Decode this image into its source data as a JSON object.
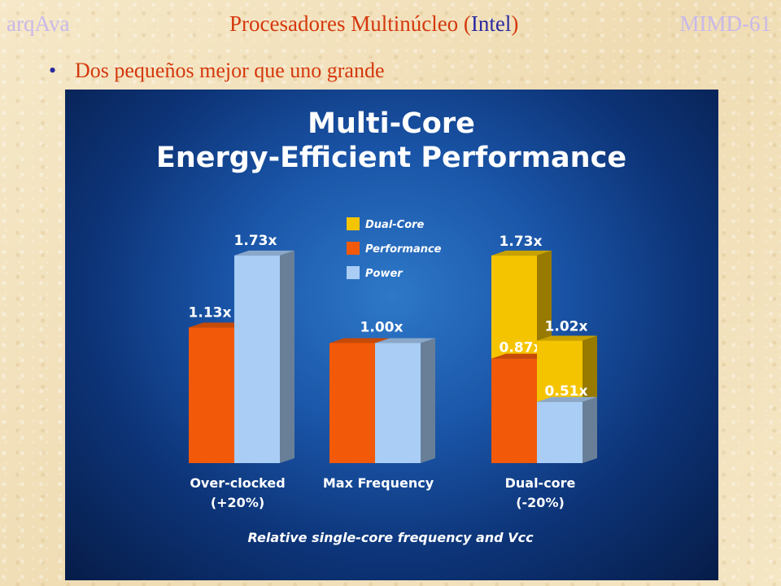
{
  "header": {
    "left": "arqAva",
    "title_before": "Procesadores Multinúcleo (",
    "title_brand": "Intel",
    "title_after": ")",
    "right": "MIMD-61"
  },
  "bullet": {
    "symbol": "•",
    "text": "Dos pequeños mejor que uno grande"
  },
  "chart_data": {
    "type": "bar",
    "title_line1": "Multi-Core",
    "title_line2": "Energy-Efficient Performance",
    "xlabel": "Relative single-core frequency and Vcc",
    "ylabel": "",
    "ylim": [
      0,
      1.8
    ],
    "legend": {
      "placement": "top-center",
      "entries": [
        {
          "name": "Dual-Core",
          "color": "#f5c400"
        },
        {
          "name": "Performance",
          "color": "#f25a0a"
        },
        {
          "name": "Power",
          "color": "#a9cdf5"
        }
      ]
    },
    "groups": [
      {
        "label_line1": "Over-clocked",
        "label_line2": "(+20%)",
        "bars": [
          {
            "series": "Performance",
            "value": 1.13,
            "label": "1.13x"
          },
          {
            "series": "Power",
            "value": 1.73,
            "label": "1.73x"
          }
        ],
        "shared_label": ""
      },
      {
        "label_line1": "Max Frequency",
        "label_line2": "",
        "bars": [
          {
            "series": "Performance",
            "value": 1.0,
            "label": ""
          },
          {
            "series": "Power",
            "value": 1.0,
            "label": ""
          }
        ],
        "shared_label": "1.00x"
      },
      {
        "label_line1": "Dual-core",
        "label_line2": "(-20%)",
        "bars": [
          {
            "series": "Performance",
            "value": 0.87,
            "label": "0.87x",
            "stack_total": 1.73,
            "stack_label": "1.73x"
          },
          {
            "series": "Power",
            "value": 0.51,
            "label": "0.51x",
            "stack_total": 1.02,
            "stack_label": "1.02x"
          }
        ],
        "shared_label": ""
      }
    ],
    "colors": {
      "performance": "#f25a0a",
      "power": "#a9cdf5",
      "dual_core": "#f5c400",
      "side_shade": "#5a6f88",
      "text": "#ffffff",
      "inner_label": "#ffffff"
    }
  }
}
